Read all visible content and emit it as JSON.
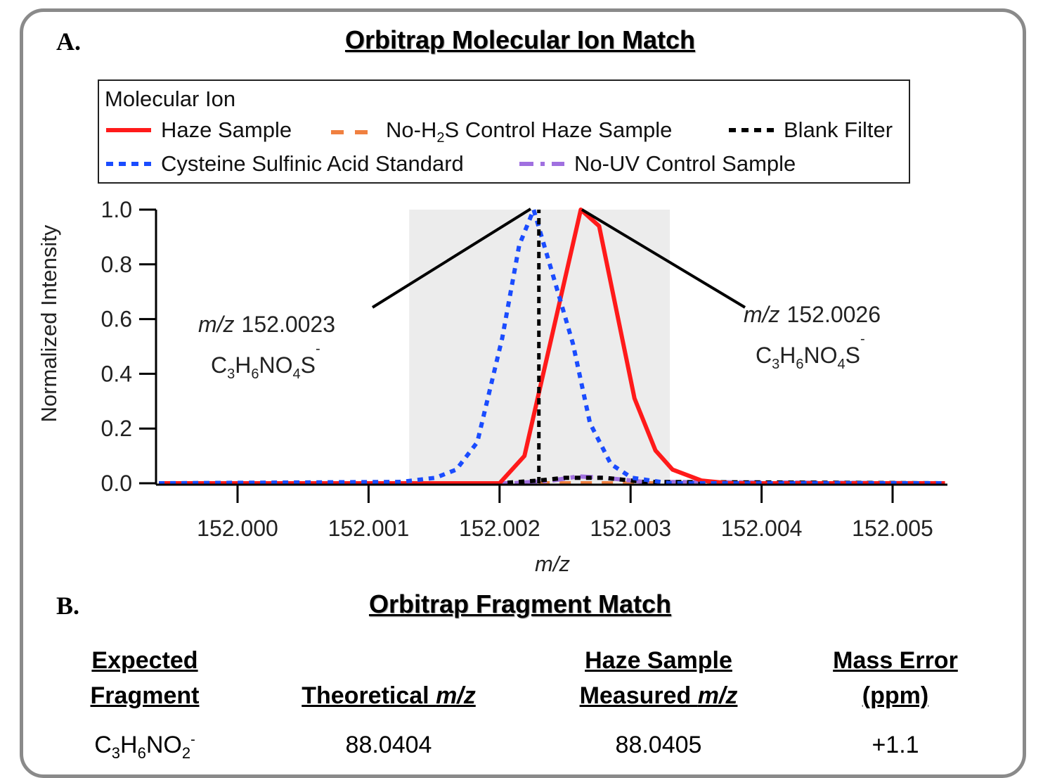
{
  "panel_a": {
    "letter": "A.",
    "title": "Orbitrap Molecular Ion Match"
  },
  "panel_b": {
    "letter": "B.",
    "title": "Orbitrap Fragment Match"
  },
  "legend": {
    "title": "Molecular Ion",
    "items": [
      {
        "label": "Haze Sample",
        "color": "#ff1a1a",
        "style": "solid"
      },
      {
        "label_pre": "No-H",
        "label_sub": "2",
        "label_post": "S Control Haze Sample",
        "color": "#f08040",
        "style": "dashed"
      },
      {
        "label": "Blank Filter",
        "color": "#000000",
        "style": "dotted"
      },
      {
        "label": "Cysteine Sulfinic Acid Standard",
        "color": "#1a4cff",
        "style": "dotted"
      },
      {
        "label": "No-UV Control Sample",
        "color": "#a070e0",
        "style": "dash-dot"
      }
    ]
  },
  "annotations": {
    "left": {
      "mz_label": "m/z",
      "mz_value": "152.0023",
      "formula": [
        "C",
        "3",
        "H",
        "6",
        "NO",
        "4",
        "S",
        "-"
      ]
    },
    "right": {
      "mz_label": "m/z",
      "mz_value": "152.0026",
      "formula": [
        "C",
        "3",
        "H",
        "6",
        "NO",
        "4",
        "S",
        "-"
      ]
    }
  },
  "chart_data": {
    "type": "line",
    "xlabel": "m/z",
    "ylabel": "Normalized Intensity",
    "xlim": [
      151.99937,
      152.00541
    ],
    "ylim": [
      0,
      1.0
    ],
    "xticks": [
      "152.000",
      "152.001",
      "152.002",
      "152.003",
      "152.004",
      "152.005"
    ],
    "yticks": [
      "0.0",
      "0.2",
      "0.4",
      "0.6",
      "0.8",
      "1.0"
    ],
    "shaded_region_x": [
      152.00131,
      152.0033
    ],
    "grid": false,
    "legend_position": "top",
    "series": [
      {
        "name": "Haze Sample",
        "color": "#ff1a1a",
        "style": "solid",
        "x": [
          151.9994,
          152.002,
          152.00219,
          152.00262,
          152.00276,
          152.00303,
          152.00319,
          152.00332,
          152.00354,
          152.00375,
          152.0054
        ],
        "y": [
          0,
          0,
          0.1,
          1.0,
          0.94,
          0.31,
          0.12,
          0.05,
          0.01,
          0,
          0
        ]
      },
      {
        "name": "No-H2S Control Haze Sample",
        "color": "#f08040",
        "style": "dashed",
        "x": [
          151.9994,
          152.0054
        ],
        "y": [
          0,
          0
        ]
      },
      {
        "name": "Blank Filter",
        "color": "#000000",
        "style": "dotted",
        "x": [
          151.9994,
          152.002,
          152.0023,
          152.0025,
          152.0028,
          152.0031,
          152.0054
        ],
        "y": [
          0,
          0,
          0.01,
          0.02,
          0.02,
          0.005,
          0
        ]
      },
      {
        "name": "Cysteine Sulfinic Acid Standard",
        "color": "#1a4cff",
        "style": "dotted",
        "x": [
          151.9994,
          152.00125,
          152.00151,
          152.00167,
          152.00183,
          152.00202,
          152.00215,
          152.00226,
          152.00242,
          152.00256,
          152.00269,
          152.00285,
          152.00301,
          152.0033,
          152.0054
        ],
        "y": [
          0,
          0.005,
          0.02,
          0.05,
          0.15,
          0.53,
          0.87,
          1.0,
          0.74,
          0.51,
          0.22,
          0.07,
          0.02,
          0,
          0
        ]
      },
      {
        "name": "No-UV Control Sample",
        "color": "#a070e0",
        "style": "dash-dot",
        "x": [
          151.9994,
          152.0021,
          152.0024,
          152.0026,
          152.0028,
          152.0031,
          152.0054
        ],
        "y": [
          0,
          0,
          0.01,
          0.025,
          0.02,
          0.005,
          0
        ]
      }
    ],
    "marker_line_x": 152.0023
  },
  "table": {
    "headers": [
      [
        "Expected",
        "Fragment"
      ],
      [
        "",
        "Theoretical m/z"
      ],
      [
        "Haze Sample",
        "Measured m/z"
      ],
      [
        "Mass Error",
        "(ppm)"
      ]
    ],
    "row": {
      "fragment": [
        "C",
        "3",
        "H",
        "6",
        "NO",
        "2",
        "-"
      ],
      "theoretical": "88.0404",
      "measured": "88.0405",
      "error": "+1.1"
    }
  }
}
